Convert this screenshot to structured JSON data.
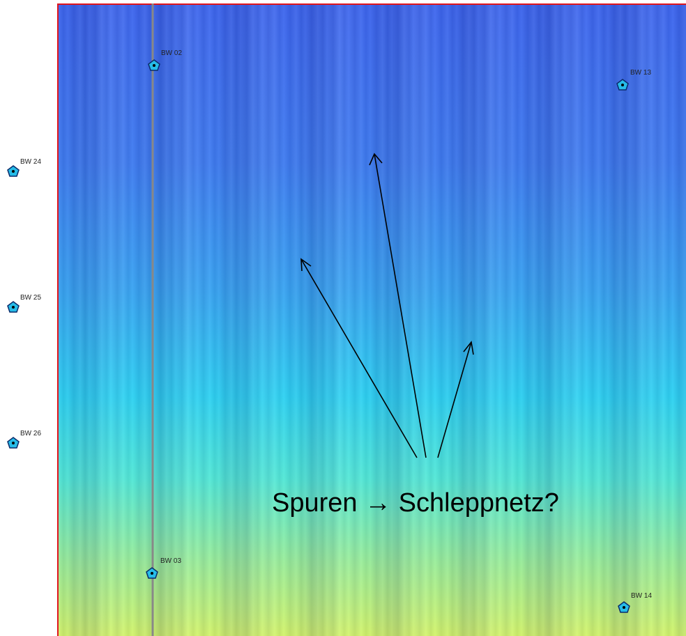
{
  "markers": [
    {
      "label": "BW 02"
    },
    {
      "label": "BW 13"
    },
    {
      "label": "BW 24"
    },
    {
      "label": "BW 25"
    },
    {
      "label": "BW 26"
    },
    {
      "label": "BW 03"
    },
    {
      "label": "BW 14"
    }
  ],
  "annotation": "Spuren → Schleppnetz?"
}
